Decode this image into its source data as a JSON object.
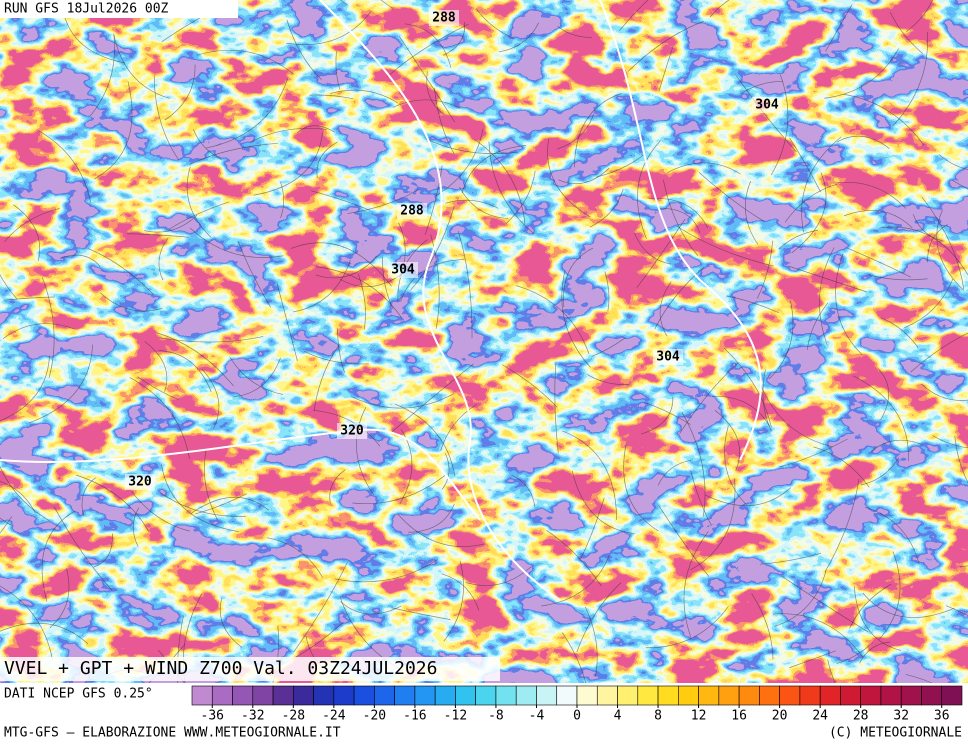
{
  "header": {
    "run": "RUN GFS 18Jul2026 00Z"
  },
  "map": {
    "title": "VVEL + GPT + WIND Z700 Val. 03Z24JUL2026",
    "contour_labels": [
      "288",
      "304",
      "288",
      "304",
      "304",
      "320",
      "320"
    ]
  },
  "colorbar": {
    "source": "DATI NCEP GFS 0.25°",
    "range": [
      -38,
      38
    ],
    "ticks": [
      -36,
      -32,
      -28,
      -24,
      -20,
      -16,
      -12,
      -8,
      -4,
      0,
      4,
      8,
      12,
      16,
      20,
      24,
      28,
      32,
      36
    ],
    "colors": [
      "#c08ad0",
      "#a96cc2",
      "#9457b3",
      "#7f44a4",
      "#5a2f96",
      "#3a2a9c",
      "#2432b4",
      "#1e3ccc",
      "#1b4fe0",
      "#1d66ec",
      "#1f7ff0",
      "#2296f2",
      "#27acf2",
      "#32c2f0",
      "#4ad4ee",
      "#72e2f0",
      "#9eecf2",
      "#c8f4f6",
      "#f2fbfb",
      "#fdfbd0",
      "#fff5a0",
      "#fff070",
      "#ffe840",
      "#ffdc20",
      "#ffcc10",
      "#ffb810",
      "#ffa010",
      "#ff8a10",
      "#ff7010",
      "#fb5414",
      "#f03a1c",
      "#e02428",
      "#cf1a34",
      "#c0163e",
      "#b01446",
      "#a0124c",
      "#901050",
      "#801054"
    ]
  },
  "footer": {
    "left": "MTG-GFS – ELABORAZIONE WWW.METEOGIORNALE.IT",
    "right": "(C) METEOGIORNALE"
  }
}
